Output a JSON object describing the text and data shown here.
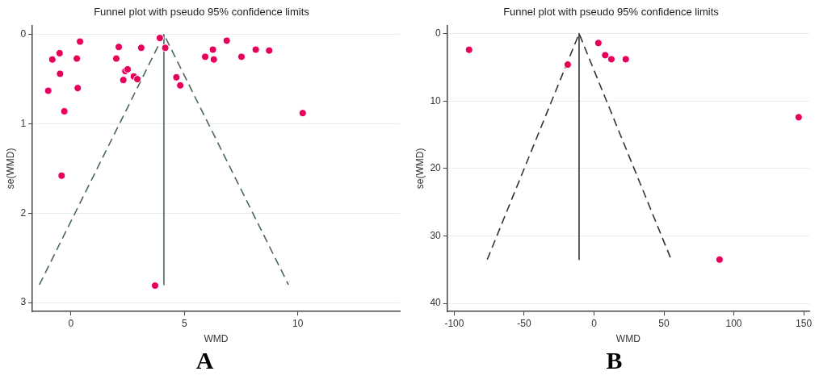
{
  "chart_data": [
    {
      "type": "scatter",
      "title": "Funnel plot with pseudo 95% confidence limits",
      "xlabel": "WMD",
      "ylabel": "se(WMD)",
      "annotations": [
        "A"
      ],
      "xlim": [
        -1.7,
        14.5
      ],
      "xticks": [
        0,
        5,
        10
      ],
      "ylim": [
        3.1,
        -0.1
      ],
      "yticks": [
        0,
        1,
        2,
        3
      ],
      "grid": "y",
      "legend": false,
      "series": [
        {
          "type": "scatter",
          "color": "#e6005c",
          "marker": "circle",
          "x": [
            0.4,
            -0.5,
            -0.82,
            0.26,
            -0.48,
            -1.0,
            0.3,
            -0.29,
            -0.41,
            2.11,
            3.1,
            2.0,
            2.4,
            2.5,
            2.31,
            2.77,
            2.93,
            3.92,
            4.16,
            4.65,
            4.82,
            5.92,
            6.26,
            6.3,
            6.87,
            7.52,
            8.15,
            8.74,
            10.22,
            3.71
          ],
          "values": [
            0.08,
            0.21,
            0.28,
            0.27,
            0.44,
            0.63,
            0.6,
            0.86,
            1.58,
            0.14,
            0.15,
            0.27,
            0.41,
            0.39,
            0.51,
            0.47,
            0.5,
            0.04,
            0.15,
            0.48,
            0.57,
            0.25,
            0.17,
            0.28,
            0.07,
            0.25,
            0.17,
            0.18,
            0.88,
            2.81
          ]
        },
        {
          "type": "line",
          "color": "#4a675c",
          "marker": "none",
          "line_style": "dashed",
          "x": [
            -1.39,
            4.1,
            9.59
          ],
          "values": [
            2.8,
            0,
            2.8
          ]
        },
        {
          "type": "line",
          "color": "#4a675c",
          "marker": "none",
          "line_style": "solid",
          "x": [
            4.1,
            4.1
          ],
          "values": [
            0,
            2.8
          ]
        }
      ]
    },
    {
      "type": "scatter",
      "title": "Funnel plot with pseudo 95% confidence limits",
      "xlabel": "WMD",
      "ylabel": "se(WMD)",
      "annotations": [
        "B"
      ],
      "xlim": [
        -105,
        154
      ],
      "xticks": [
        -100,
        -50,
        0,
        50,
        100,
        150
      ],
      "ylim": [
        41.2,
        -1.2
      ],
      "yticks": [
        0,
        10,
        20,
        30,
        40
      ],
      "grid": "y",
      "legend": false,
      "series": [
        {
          "type": "scatter",
          "color": "#e6005c",
          "marker": "circle",
          "x": [
            -89.4,
            -18.8,
            3.1,
            8.0,
            12.4,
            22.7,
            146.4,
            89.8
          ],
          "values": [
            2.4,
            4.6,
            1.4,
            3.2,
            3.8,
            3.8,
            12.4,
            33.5
          ]
        },
        {
          "type": "line",
          "color": "#333333",
          "marker": "none",
          "line_style": "dashed",
          "x": [
            -76.4,
            -10.7,
            55.2
          ],
          "values": [
            33.5,
            0,
            33.5
          ]
        },
        {
          "type": "line",
          "color": "#333333",
          "marker": "none",
          "line_style": "solid",
          "x": [
            -10.7,
            -10.7
          ],
          "values": [
            0,
            33.5
          ]
        }
      ]
    }
  ]
}
